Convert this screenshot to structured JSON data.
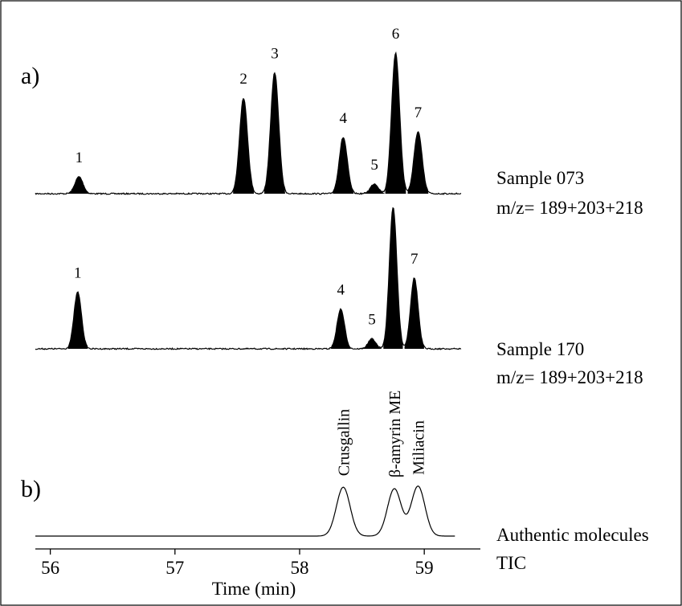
{
  "chart_data": {
    "type": "line",
    "panels": [
      {
        "label": "a)",
        "traces": [
          {
            "name": "Sample 073",
            "descriptor": "m/z= 189+203+218",
            "peaks": [
              {
                "label": "1",
                "rt": 56.23,
                "height": 0.12
              },
              {
                "label": "2",
                "rt": 57.55,
                "height": 0.68
              },
              {
                "label": "3",
                "rt": 57.8,
                "height": 0.86
              },
              {
                "label": "4",
                "rt": 58.35,
                "height": 0.4
              },
              {
                "label": "5",
                "rt": 58.6,
                "height": 0.07
              },
              {
                "label": "6",
                "rt": 58.77,
                "height": 1.0
              },
              {
                "label": "7",
                "rt": 58.95,
                "height": 0.44
              }
            ]
          },
          {
            "name": "Sample 170",
            "descriptor": "m/z= 189+203+218",
            "peaks": [
              {
                "label": "1",
                "rt": 56.22,
                "height": 0.4
              },
              {
                "label": "4",
                "rt": 58.33,
                "height": 0.28
              },
              {
                "label": "5",
                "rt": 58.58,
                "height": 0.07
              },
              {
                "label": "6",
                "rt": 58.75,
                "height": 1.0
              },
              {
                "label": "7",
                "rt": 58.92,
                "height": 0.5
              }
            ]
          }
        ]
      },
      {
        "label": "b)",
        "traces": [
          {
            "name": "Authentic molecules",
            "descriptor": "TIC",
            "peaks": [
              {
                "label": "Crusgallin",
                "rt": 58.35,
                "height": 0.95
              },
              {
                "label": "β-amyrin ME",
                "rt": 58.76,
                "height": 0.92
              },
              {
                "label": "Miliacin",
                "rt": 58.95,
                "height": 0.97
              }
            ]
          }
        ]
      }
    ],
    "xlabel": "Time (min)",
    "xlim": [
      55.88,
      59.45
    ],
    "xticks": [
      56,
      57,
      58,
      59
    ]
  }
}
